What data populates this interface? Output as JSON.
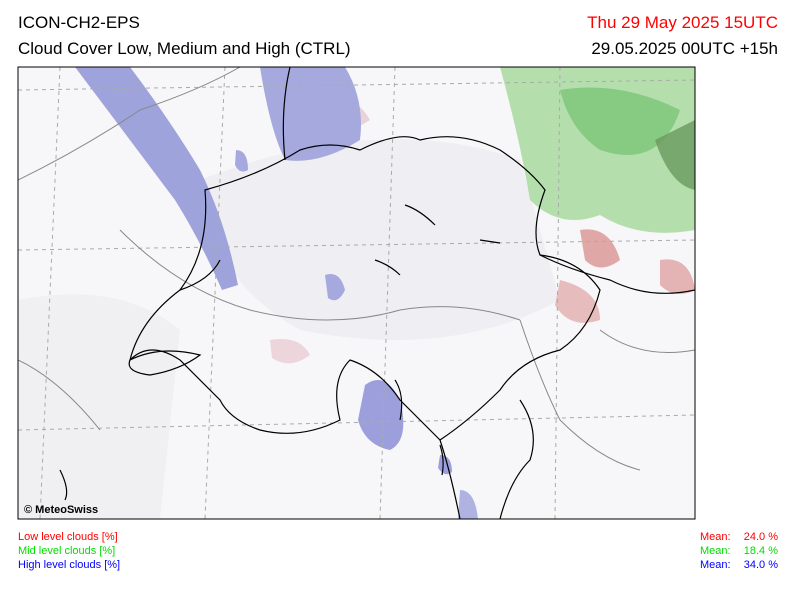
{
  "header": {
    "model": "ICON-CH2-EPS",
    "title": "Cloud Cover Low, Medium and High (CTRL)",
    "valid_time": "Thu 29 May 2025 15UTC",
    "run": "29.05.2025 00UTC +15h"
  },
  "map": {
    "credit": "© MeteoSwiss"
  },
  "legend": [
    {
      "label": "Low level clouds [%]",
      "mean_label": "Mean:",
      "mean": "24.0 %",
      "color": "#ff0000"
    },
    {
      "label": "Mid level clouds [%]",
      "mean_label": "Mean:",
      "mean": "18.4 %",
      "color": "#00dd00"
    },
    {
      "label": "High level clouds [%]",
      "mean_label": "Mean:",
      "mean": "34.0 %",
      "color": "#0000ff"
    }
  ]
}
